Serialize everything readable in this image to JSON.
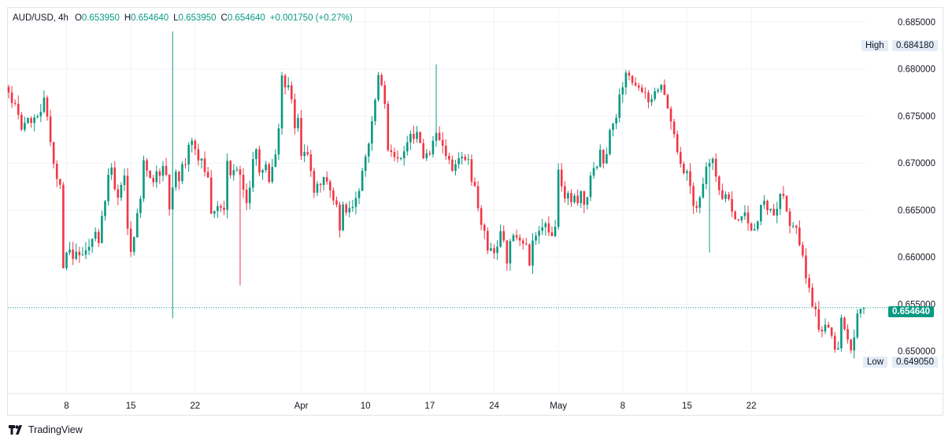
{
  "header": {
    "symbol": "AUD/USD, 4h",
    "open_label": "O",
    "open": "0.653950",
    "high_label": "H",
    "high": "0.654640",
    "low_label": "L",
    "low": "0.653950",
    "close_label": "C",
    "close": "0.654640",
    "change": "+0.001750 (+0.27%)"
  },
  "markers": {
    "high_label": "High",
    "high_value": "0.684180",
    "low_label": "Low",
    "low_value": "0.649050",
    "last_value": "0.654640"
  },
  "brand": "TradingView",
  "colors": {
    "up": "#089981",
    "down": "#f23645",
    "grid": "#f0f3fa",
    "text": "#131722"
  },
  "chart_data": {
    "type": "candlestick",
    "y_ticks": [
      "0.685000",
      "0.680000",
      "0.675000",
      "0.670000",
      "0.665000",
      "0.660000",
      "0.655000",
      "0.650000"
    ],
    "x_ticks": [
      "8",
      "15",
      "22",
      "Apr",
      "10",
      "17",
      "24",
      "May",
      "8",
      "15",
      "22"
    ],
    "ylim": [
      0.6455,
      0.6865
    ],
    "grid": true,
    "path": [
      [
        0,
        0.6775
      ],
      [
        5,
        0.6735
      ],
      [
        11,
        0.6765
      ],
      [
        13,
        0.672
      ],
      [
        16,
        0.667
      ],
      [
        17,
        0.659
      ],
      [
        19,
        0.6605
      ],
      [
        22,
        0.6595
      ],
      [
        23,
        0.66
      ],
      [
        26,
        0.6625
      ],
      [
        28,
        0.6615
      ],
      [
        31,
        0.6685
      ],
      [
        32,
        0.669
      ],
      [
        34,
        0.666
      ],
      [
        36,
        0.669
      ],
      [
        37,
        0.663
      ],
      [
        38,
        0.6612
      ],
      [
        40,
        0.664
      ],
      [
        42,
        0.67
      ],
      [
        45,
        0.6685
      ],
      [
        49,
        0.6695
      ],
      [
        50,
        0.665
      ],
      [
        52,
        0.6685
      ],
      [
        55,
        0.6695
      ],
      [
        57,
        0.673
      ],
      [
        59,
        0.6705
      ],
      [
        62,
        0.6685
      ],
      [
        63,
        0.664
      ],
      [
        65,
        0.665
      ],
      [
        67,
        0.6652
      ],
      [
        68,
        0.6695
      ],
      [
        71,
        0.669
      ],
      [
        74,
        0.666
      ],
      [
        77,
        0.6715
      ],
      [
        78,
        0.6692
      ],
      [
        80,
        0.6695
      ],
      [
        81,
        0.6675
      ],
      [
        82,
        0.669
      ],
      [
        84,
        0.6735
      ],
      [
        85,
        0.679
      ],
      [
        87,
        0.678
      ],
      [
        89,
        0.674
      ],
      [
        90,
        0.675
      ],
      [
        91,
        0.6715
      ],
      [
        93,
        0.6715
      ],
      [
        94,
        0.669
      ],
      [
        95,
        0.6665
      ],
      [
        98,
        0.6685
      ],
      [
        100,
        0.6665
      ],
      [
        102,
        0.665
      ],
      [
        103,
        0.6635
      ],
      [
        104,
        0.6655
      ],
      [
        106,
        0.665
      ],
      [
        108,
        0.666
      ],
      [
        111,
        0.671
      ],
      [
        113,
        0.674
      ],
      [
        115,
        0.679
      ],
      [
        117,
        0.677
      ],
      [
        118,
        0.6715
      ],
      [
        120,
        0.67
      ],
      [
        121,
        0.671
      ],
      [
        123,
        0.671
      ],
      [
        125,
        0.6725
      ],
      [
        127,
        0.6735
      ],
      [
        129,
        0.671
      ],
      [
        131,
        0.6715
      ],
      [
        133,
        0.674
      ],
      [
        135,
        0.6725
      ],
      [
        137,
        0.67
      ],
      [
        139,
        0.6695
      ],
      [
        140,
        0.6705
      ],
      [
        143,
        0.67
      ],
      [
        145,
        0.667
      ],
      [
        146,
        0.665
      ],
      [
        147,
        0.663
      ],
      [
        149,
        0.6615
      ],
      [
        151,
        0.661
      ],
      [
        153,
        0.662
      ],
      [
        155,
        0.66
      ],
      [
        157,
        0.6625
      ],
      [
        158,
        0.6615
      ],
      [
        161,
        0.6615
      ],
      [
        162,
        0.659
      ],
      [
        163,
        0.662
      ],
      [
        164,
        0.6615
      ],
      [
        166,
        0.6635
      ],
      [
        169,
        0.6625
      ],
      [
        170,
        0.663
      ],
      [
        171,
        0.67
      ],
      [
        173,
        0.6665
      ],
      [
        176,
        0.666
      ],
      [
        178,
        0.6665
      ],
      [
        179,
        0.665
      ],
      [
        181,
        0.669
      ],
      [
        182,
        0.669
      ],
      [
        184,
        0.671
      ],
      [
        186,
        0.6705
      ],
      [
        187,
        0.6735
      ],
      [
        189,
        0.6755
      ],
      [
        191,
        0.6785
      ],
      [
        193,
        0.6795
      ],
      [
        195,
        0.678
      ],
      [
        197,
        0.677
      ],
      [
        199,
        0.677
      ],
      [
        200,
        0.6765
      ],
      [
        202,
        0.678
      ],
      [
        203,
        0.679
      ],
      [
        205,
        0.6755
      ],
      [
        206,
        0.6745
      ],
      [
        208,
        0.6705
      ],
      [
        210,
        0.6695
      ],
      [
        211,
        0.669
      ],
      [
        213,
        0.666
      ],
      [
        214,
        0.665
      ],
      [
        216,
        0.6685
      ],
      [
        217,
        0.67
      ],
      [
        219,
        0.6705
      ],
      [
        220,
        0.669
      ],
      [
        221,
        0.667
      ],
      [
        222,
        0.666
      ],
      [
        224,
        0.666
      ],
      [
        226,
        0.664
      ],
      [
        227,
        0.664
      ],
      [
        229,
        0.665
      ],
      [
        231,
        0.6635
      ],
      [
        232,
        0.6635
      ],
      [
        234,
        0.6655
      ],
      [
        236,
        0.6655
      ],
      [
        238,
        0.665
      ],
      [
        240,
        0.666
      ],
      [
        241,
        0.666
      ],
      [
        243,
        0.664
      ],
      [
        245,
        0.6625
      ],
      [
        247,
        0.6605
      ],
      [
        249,
        0.656
      ],
      [
        251,
        0.654
      ],
      [
        252,
        0.653
      ],
      [
        254,
        0.6525
      ],
      [
        256,
        0.651
      ],
      [
        258,
        0.6505
      ],
      [
        259,
        0.653
      ],
      [
        261,
        0.651
      ],
      [
        262,
        0.6505
      ],
      [
        264,
        0.6535
      ],
      [
        266,
        0.6546
      ]
    ],
    "spikes": [
      [
        51,
        0.684,
        0.6535
      ],
      [
        72,
        0.663,
        0.657
      ],
      [
        133,
        0.6805,
        0.6725
      ],
      [
        218,
        0.6635,
        0.6605
      ]
    ]
  }
}
